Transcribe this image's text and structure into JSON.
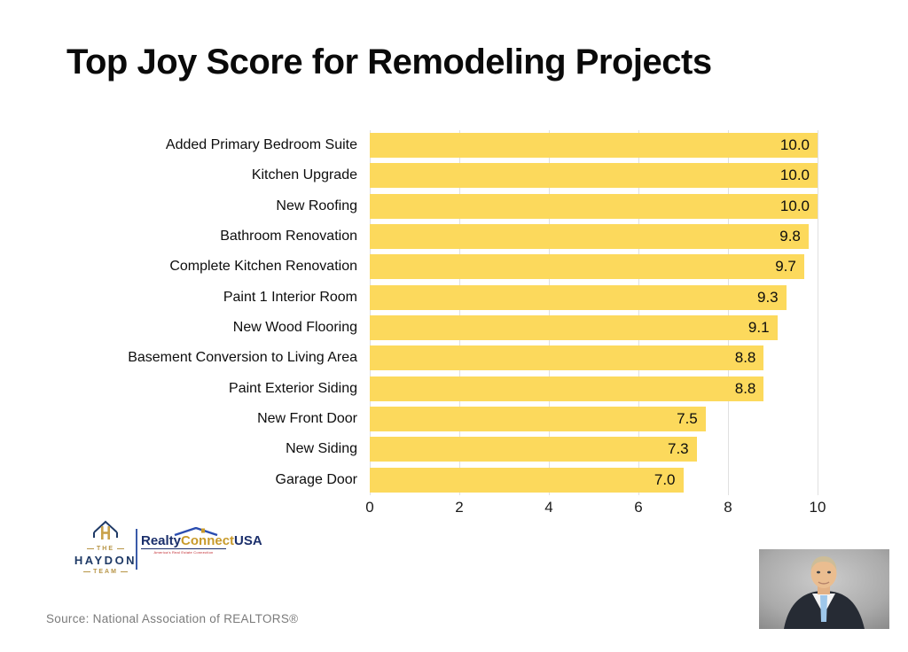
{
  "title": "Top Joy Score for Remodeling Projects",
  "chart_data": {
    "type": "bar",
    "orientation": "horizontal",
    "title": "Top Joy Score for Remodeling Projects",
    "categories": [
      "Added Primary Bedroom Suite",
      "Kitchen Upgrade",
      "New Roofing",
      "Bathroom Renovation",
      "Complete Kitchen Renovation",
      "Paint 1 Interior Room",
      "New Wood Flooring",
      "Basement Conversion to Living Area",
      "Paint Exterior Siding",
      "New Front Door",
      "New Siding",
      "Garage Door"
    ],
    "values": [
      10.0,
      10.0,
      10.0,
      9.8,
      9.7,
      9.3,
      9.1,
      8.8,
      8.8,
      7.5,
      7.3,
      7.0
    ],
    "value_labels": [
      "10.0",
      "10.0",
      "10.0",
      "9.8",
      "9.7",
      "9.3",
      "9.1",
      "8.8",
      "8.8",
      "7.5",
      "7.3",
      "7.0"
    ],
    "xlim": [
      0,
      10
    ],
    "x_ticks": [
      0,
      2,
      4,
      6,
      8,
      10
    ],
    "grid": true,
    "legend": false,
    "bar_color": "#fcd95c",
    "gridline_color": "#e0e0e0"
  },
  "branding": {
    "haydon_logo": {
      "the": "THE",
      "name": "HAYDON",
      "team": "TEAM"
    },
    "realty_logo": {
      "part1": "Realty",
      "part2": "Connect",
      "part3": "USA",
      "tagline": "America's Real Estate Connection"
    }
  },
  "source": "Source: National Association of REALTORS®",
  "colors": {
    "bar": "#fcd95c",
    "navy": "#1f3a66",
    "gold": "#b79546",
    "tagline_red": "#c1272d"
  }
}
